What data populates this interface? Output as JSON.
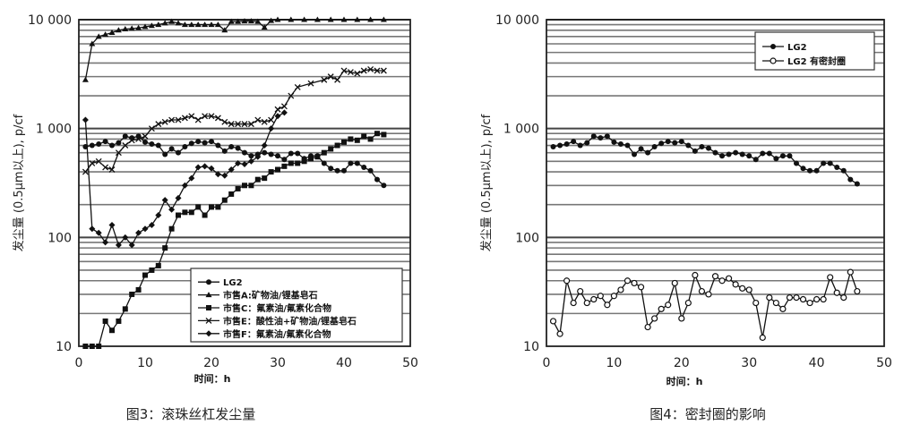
{
  "chart_data": [
    {
      "type": "line",
      "caption": "图3：滚珠丝杠发尘量",
      "xlabel": "时间：h",
      "ylabel": "发尘量 (0.5μm以上), p/cf",
      "xlim": [
        0,
        50
      ],
      "ylim": [
        10,
        10000
      ],
      "yscale": "log",
      "xticks": [
        "0",
        "10",
        "20",
        "30",
        "40",
        "50"
      ],
      "yticks": [
        "10",
        "100",
        "1 000",
        "10 000"
      ],
      "grid": "horizontal",
      "legend_position": "bottom-right",
      "series": [
        {
          "name": "LG2",
          "marker": "circle",
          "x": [
            1,
            2,
            3,
            4,
            5,
            6,
            7,
            8,
            9,
            10,
            11,
            12,
            13,
            14,
            15,
            16,
            17,
            18,
            19,
            20,
            21,
            22,
            23,
            24,
            25,
            26,
            27,
            28,
            29,
            30,
            31,
            32,
            33,
            34,
            35,
            36,
            37,
            38,
            39,
            40,
            41,
            42,
            43,
            44,
            45,
            46
          ],
          "values": [
            680,
            700,
            720,
            760,
            700,
            740,
            850,
            820,
            850,
            750,
            720,
            700,
            580,
            650,
            600,
            680,
            730,
            760,
            740,
            760,
            700,
            620,
            680,
            660,
            600,
            560,
            580,
            600,
            580,
            560,
            520,
            590,
            590,
            530,
            560,
            560,
            480,
            430,
            410,
            410,
            480,
            480,
            440,
            410,
            340,
            300
          ]
        },
        {
          "name": "市售A:矿物油/锂基皂石",
          "marker": "triangle",
          "x": [
            1,
            2,
            3,
            4,
            5,
            6,
            7,
            8,
            9,
            10,
            11,
            12,
            13,
            14,
            15,
            16,
            17,
            18,
            19,
            20,
            21,
            22,
            23,
            24,
            25,
            26,
            27,
            28,
            29,
            30,
            32,
            34,
            36,
            38,
            40,
            42,
            44,
            46
          ],
          "values": [
            2800,
            6000,
            7000,
            7300,
            7600,
            8000,
            8200,
            8300,
            8400,
            8600,
            8800,
            9000,
            9300,
            9600,
            9300,
            9000,
            9000,
            9000,
            9000,
            9000,
            9000,
            8000,
            9600,
            9600,
            9700,
            9700,
            9600,
            8500,
            9800,
            10000,
            10000,
            10000,
            10000,
            10000,
            10000,
            10000,
            10000,
            10000
          ]
        },
        {
          "name": "市售C：氟素油/氟素化合物",
          "marker": "square",
          "x": [
            1,
            2,
            3,
            4,
            5,
            6,
            7,
            8,
            9,
            10,
            11,
            12,
            13,
            14,
            15,
            16,
            17,
            18,
            19,
            20,
            21,
            22,
            23,
            24,
            25,
            26,
            27,
            28,
            29,
            30,
            31,
            32,
            33,
            34,
            35,
            36,
            37,
            38,
            39,
            40,
            41,
            42,
            43,
            44,
            45,
            46
          ],
          "values": [
            10,
            10,
            10,
            17,
            14,
            17,
            22,
            30,
            33,
            45,
            50,
            55,
            80,
            120,
            160,
            170,
            170,
            190,
            160,
            190,
            190,
            220,
            250,
            280,
            300,
            300,
            340,
            350,
            400,
            420,
            450,
            480,
            480,
            500,
            530,
            550,
            600,
            650,
            700,
            750,
            800,
            780,
            850,
            800,
            900,
            880
          ]
        },
        {
          "name": "市售E：酸性油+矿物油/锂基皂石",
          "marker": "x",
          "x": [
            1,
            2,
            3,
            4,
            5,
            6,
            7,
            8,
            9,
            10,
            11,
            12,
            13,
            14,
            15,
            16,
            17,
            18,
            19,
            20,
            21,
            22,
            23,
            24,
            25,
            26,
            27,
            28,
            29,
            30,
            31,
            32,
            33,
            35,
            37,
            38,
            39,
            40,
            41,
            42,
            43,
            44,
            45,
            46
          ],
          "values": [
            400,
            480,
            500,
            440,
            420,
            600,
            700,
            780,
            800,
            850,
            1000,
            1100,
            1150,
            1200,
            1200,
            1250,
            1300,
            1200,
            1300,
            1300,
            1250,
            1150,
            1100,
            1100,
            1100,
            1100,
            1200,
            1150,
            1200,
            1500,
            1600,
            2000,
            2400,
            2600,
            2800,
            3000,
            2800,
            3400,
            3300,
            3200,
            3400,
            3500,
            3400,
            3400
          ]
        },
        {
          "name": "市售F：氟素油/氟素化合物",
          "marker": "diamond",
          "x": [
            1,
            2,
            3,
            4,
            5,
            6,
            7,
            8,
            9,
            10,
            11,
            12,
            13,
            14,
            15,
            16,
            17,
            18,
            19,
            20,
            21,
            22,
            23,
            24,
            25,
            26,
            27,
            28,
            29,
            30,
            31
          ],
          "values": [
            1200,
            120,
            110,
            90,
            130,
            85,
            100,
            85,
            110,
            120,
            130,
            160,
            220,
            180,
            230,
            300,
            350,
            440,
            450,
            430,
            380,
            370,
            420,
            480,
            470,
            500,
            550,
            700,
            1000,
            1300,
            1400
          ]
        }
      ]
    },
    {
      "type": "line",
      "caption": "图4：密封圈的影响",
      "xlabel": "时间：h",
      "ylabel": "发尘量 (0.5μm以上), p/cf",
      "xlim": [
        0,
        50
      ],
      "ylim": [
        10,
        10000
      ],
      "yscale": "log",
      "xticks": [
        "0",
        "10",
        "20",
        "30",
        "40",
        "50"
      ],
      "yticks": [
        "10",
        "100",
        "1 000",
        "10 000"
      ],
      "grid": "horizontal",
      "legend_position": "top-right",
      "series": [
        {
          "name": "LG2",
          "marker": "circle",
          "x": [
            1,
            2,
            3,
            4,
            5,
            6,
            7,
            8,
            9,
            10,
            11,
            12,
            13,
            14,
            15,
            16,
            17,
            18,
            19,
            20,
            21,
            22,
            23,
            24,
            25,
            26,
            27,
            28,
            29,
            30,
            31,
            32,
            33,
            34,
            35,
            36,
            37,
            38,
            39,
            40,
            41,
            42,
            43,
            44,
            45,
            46
          ],
          "values": [
            680,
            700,
            720,
            760,
            700,
            740,
            850,
            820,
            850,
            750,
            720,
            700,
            580,
            650,
            600,
            680,
            730,
            760,
            740,
            760,
            700,
            620,
            680,
            660,
            600,
            560,
            580,
            600,
            580,
            560,
            520,
            590,
            590,
            530,
            560,
            560,
            480,
            430,
            410,
            410,
            480,
            480,
            440,
            410,
            340,
            310
          ]
        },
        {
          "name": "LG2 有密封圈",
          "marker": "open-circle",
          "x": [
            1,
            2,
            3,
            4,
            5,
            6,
            7,
            8,
            9,
            10,
            11,
            12,
            13,
            14,
            15,
            16,
            17,
            18,
            19,
            20,
            21,
            22,
            23,
            24,
            25,
            26,
            27,
            28,
            29,
            30,
            31,
            32,
            33,
            34,
            35,
            36,
            37,
            38,
            39,
            40,
            41,
            42,
            43,
            44,
            45,
            46
          ],
          "values": [
            17,
            13,
            40,
            25,
            32,
            25,
            27,
            29,
            24,
            29,
            33,
            40,
            38,
            35,
            15,
            18,
            22,
            24,
            38,
            18,
            25,
            45,
            32,
            30,
            44,
            40,
            42,
            37,
            34,
            33,
            25,
            12,
            28,
            25,
            22,
            28,
            28,
            27,
            25,
            27,
            27,
            43,
            31,
            28,
            48,
            32
          ]
        }
      ]
    }
  ]
}
